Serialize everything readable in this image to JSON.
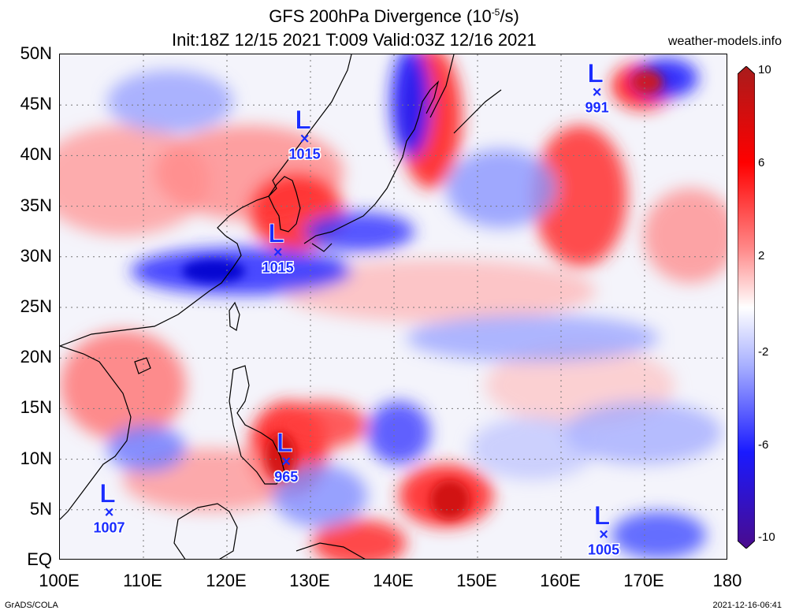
{
  "header": {
    "title": "GFS 200hPa Divergence (10",
    "title_exp": "-5",
    "title_unit": "/s)",
    "subtitle": "Init:18Z 12/15 2021 T:009 Valid:03Z 12/16 2021",
    "site": "weather-models.info"
  },
  "axes": {
    "lat_labels": [
      "50N",
      "45N",
      "40N",
      "35N",
      "30N",
      "25N",
      "20N",
      "15N",
      "10N",
      "5N",
      "EQ"
    ],
    "lon_labels": [
      "100E",
      "110E",
      "120E",
      "130E",
      "140E",
      "150E",
      "160E",
      "170E",
      "180"
    ]
  },
  "colorbar": {
    "labels": [
      "10",
      "6",
      "2",
      "-2",
      "-6",
      "-10"
    ],
    "colors": [
      "#4a0b8c",
      "#1a1aff",
      "#6b7cff",
      "#c9d0ff",
      "#ffffff",
      "#ffc4c4",
      "#ff6a6a",
      "#ff0000",
      "#a81c1c"
    ]
  },
  "pressure_systems": [
    {
      "type": "L",
      "value": "1015",
      "lat": 41.7,
      "lon": 129.3
    },
    {
      "type": "L",
      "value": "1015",
      "lat": 30.5,
      "lon": 126.1
    },
    {
      "type": "L",
      "value": "991",
      "lat": 46.3,
      "lon": 164.3
    },
    {
      "type": "L",
      "value": "965",
      "lat": 9.8,
      "lon": 127.1
    },
    {
      "type": "L",
      "value": "1007",
      "lat": 4.8,
      "lon": 105.9
    },
    {
      "type": "L",
      "value": "1005",
      "lat": 2.6,
      "lon": 165.1
    }
  ],
  "footer": {
    "left": "GrADS/COLA",
    "right": "2021-12-16-06:41"
  }
}
